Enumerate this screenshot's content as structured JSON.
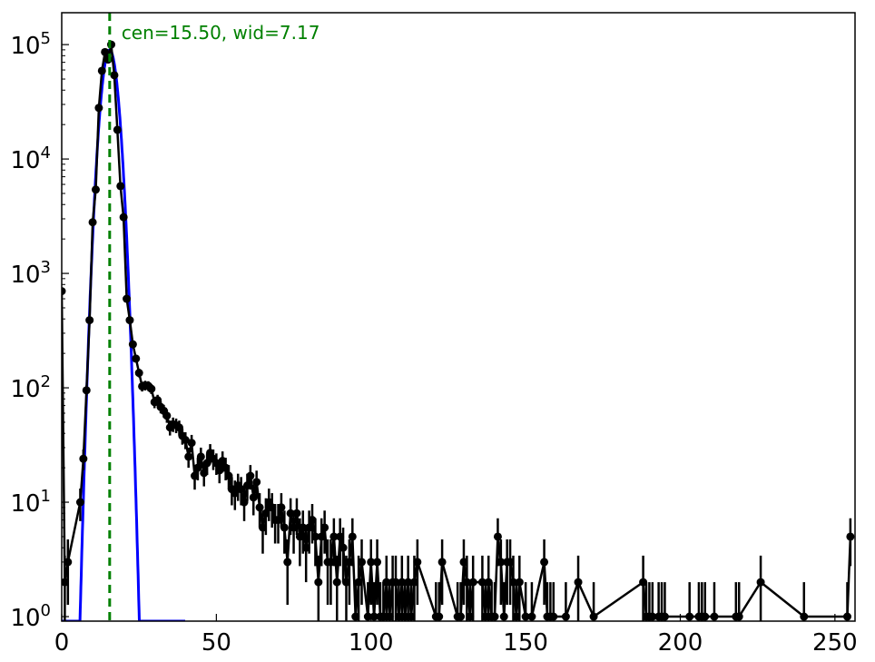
{
  "chart_data": {
    "type": "scatter",
    "title": "",
    "xlabel": "",
    "ylabel": "",
    "xlim": [
      0,
      256.5
    ],
    "ylim": [
      0.913,
      190000
    ],
    "yscale": "log",
    "grid": false,
    "x_ticks": [
      "0",
      "50",
      "100",
      "150",
      "200",
      "250"
    ],
    "x_tick_values": [
      0,
      50,
      100,
      150,
      200,
      250
    ],
    "y_ticks": [
      {
        "base": "10",
        "exp": "0",
        "value": 1
      },
      {
        "base": "10",
        "exp": "1",
        "value": 10
      },
      {
        "base": "10",
        "exp": "2",
        "value": 100
      },
      {
        "base": "10",
        "exp": "3",
        "value": 1000
      },
      {
        "base": "10",
        "exp": "4",
        "value": 10000
      },
      {
        "base": "10",
        "exp": "5",
        "value": 100000
      }
    ],
    "annotation": "cen=15.50, wid=7.17",
    "center_line": 15.5,
    "fit_curve": {
      "type": "gaussian",
      "center": 15.5,
      "amplitude": 90000,
      "sigma": 2.0
    },
    "colors": {
      "data": "#000000",
      "fit": "#0000ff",
      "center_line": "#008000",
      "annotation": "#008000"
    },
    "error_bars": "sqrt(N)",
    "series": [
      {
        "x": [
          0,
          1,
          2,
          6,
          7,
          8,
          9,
          10,
          11,
          12,
          13,
          14,
          15,
          16,
          17,
          18,
          19,
          20,
          21,
          22,
          23,
          24,
          25,
          26,
          27,
          28,
          29,
          30,
          31,
          32,
          33,
          34,
          35,
          36,
          37,
          38,
          39,
          40,
          41,
          42,
          43,
          44,
          45,
          46,
          47,
          48,
          49,
          50,
          51,
          52,
          53,
          54,
          55,
          56,
          57,
          58,
          59,
          60,
          61,
          62,
          63,
          64,
          65,
          66,
          67,
          68,
          69,
          70,
          71,
          72,
          73,
          74,
          75,
          76,
          77,
          78,
          79,
          80,
          81,
          82,
          83,
          84,
          85,
          86,
          87,
          88,
          89,
          90,
          91,
          92,
          93,
          94,
          95,
          96,
          97,
          99,
          100,
          101,
          102,
          103,
          104,
          105,
          106,
          107,
          108,
          109,
          110,
          111,
          112,
          113,
          114,
          115,
          121,
          122,
          123,
          128,
          129,
          130,
          131,
          132,
          133,
          136,
          137,
          138,
          139,
          140,
          141,
          142,
          143,
          144,
          145,
          146,
          147,
          148,
          150,
          152,
          156,
          157,
          158,
          159,
          163,
          167,
          172,
          188,
          189,
          190,
          191,
          193,
          194,
          195,
          203,
          206,
          207,
          208,
          211,
          218,
          219,
          226,
          240,
          254,
          255
        ],
        "y": [
          700,
          2,
          3,
          10,
          24,
          95,
          390,
          2800,
          5400,
          28000,
          59000,
          86000,
          74000,
          100000,
          54000,
          18000,
          5800,
          3100,
          600,
          390,
          240,
          180,
          135,
          103,
          105,
          104,
          98,
          75,
          78,
          68,
          63,
          57,
          45,
          48,
          47,
          45,
          38,
          35,
          25,
          33,
          17,
          20,
          25,
          18,
          22,
          27,
          24,
          22,
          19,
          23,
          20,
          17,
          13,
          12,
          14,
          13,
          10,
          14,
          17,
          11,
          15,
          9,
          6,
          8,
          10,
          9,
          7,
          7,
          9,
          6,
          3,
          8,
          6,
          8,
          5,
          6,
          4,
          6,
          7,
          5,
          2,
          5,
          6,
          3,
          3,
          5,
          2,
          5,
          4,
          2,
          3,
          5,
          1,
          2,
          3,
          1,
          3,
          1,
          3,
          1,
          1,
          2,
          1,
          2,
          2,
          1,
          2,
          1,
          2,
          1,
          2,
          3,
          1,
          1,
          3,
          1,
          1,
          3,
          2,
          1,
          2,
          2,
          1,
          2,
          1,
          1,
          5,
          3,
          1,
          3,
          3,
          2,
          1,
          2,
          1,
          1,
          3,
          1,
          1,
          1,
          1,
          2,
          1,
          2,
          1,
          1,
          1,
          1,
          1,
          1,
          1,
          1,
          1,
          1,
          1,
          1,
          1,
          2,
          1,
          1,
          5
        ]
      }
    ]
  }
}
